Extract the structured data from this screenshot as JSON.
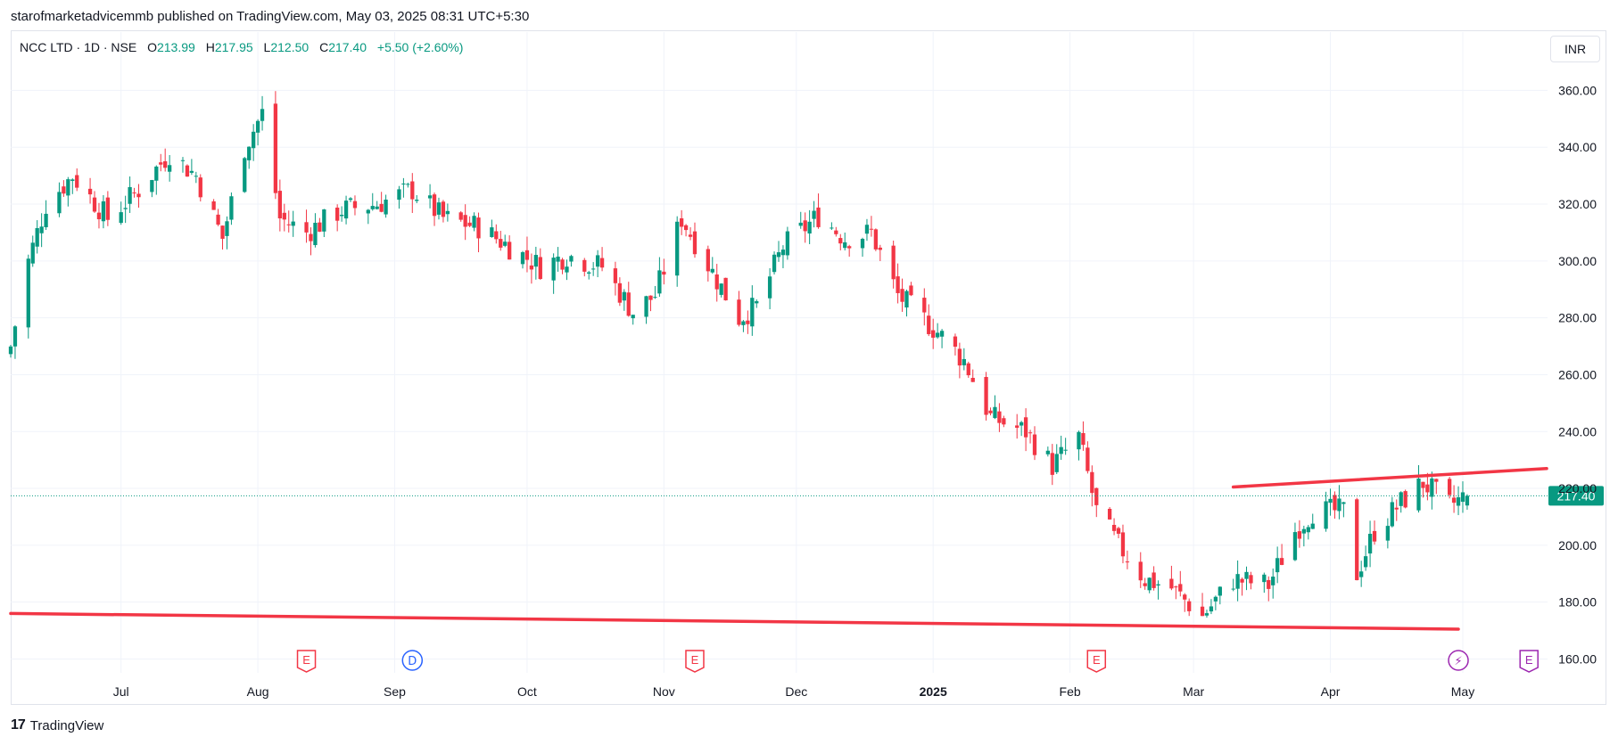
{
  "publisher_line": "starofmarketadvicemmb published on TradingView.com, May 03, 2025 08:31 UTC+5:30",
  "legend": {
    "symbol": "NCC LTD · 1D · NSE",
    "open_label": "O",
    "open": "213.99",
    "high_label": "H",
    "high": "217.95",
    "low_label": "L",
    "low": "212.50",
    "close_label": "C",
    "close": "217.40",
    "change": "+5.50 (+2.60%)"
  },
  "currency": "INR",
  "last_price_label": "217.40",
  "footer_brand": "TradingView",
  "colors": {
    "up": "#089981",
    "down": "#f23645",
    "trendline": "#f23645",
    "grid": "#f0f3fa",
    "earnings": "#f23645",
    "dividend": "#2962ff",
    "split": "#9c27b0"
  },
  "chart_data": {
    "type": "candlestick",
    "x_axis": {
      "type": "date",
      "ticks": [
        "Jul",
        "Aug",
        "Sep",
        "Oct",
        "Nov",
        "Dec",
        "2025",
        "Feb",
        "Mar",
        "Apr",
        "May"
      ]
    },
    "y_axis": {
      "ticks": [
        "360.00",
        "340.00",
        "320.00",
        "300.00",
        "280.00",
        "260.00",
        "240.00",
        "220.00",
        "200.00",
        "180.00",
        "160.00"
      ],
      "range": [
        152,
        378
      ]
    },
    "last_price": 217.4,
    "trendlines": [
      {
        "from": [
          "2024-06-06",
          176
        ],
        "to": [
          "2025-04-30",
          170.5
        ]
      },
      {
        "from": [
          "2025-03-10",
          220.5
        ],
        "to": [
          "2025-05-20",
          227
        ]
      }
    ],
    "events": [
      {
        "type": "earnings",
        "label": "E",
        "date": "2024-08-12"
      },
      {
        "type": "dividend",
        "label": "D",
        "date": "2024-09-05"
      },
      {
        "type": "earnings",
        "label": "E",
        "date": "2024-11-08"
      },
      {
        "type": "earnings",
        "label": "E",
        "date": "2025-02-07"
      },
      {
        "type": "split",
        "label": "⚡",
        "date": "2025-04-30"
      },
      {
        "type": "earnings",
        "label": "E",
        "date": "2025-05-16"
      }
    ],
    "ohlc_keyframes": [
      [
        "2024-06-06",
        270
      ],
      [
        "2024-06-10",
        300
      ],
      [
        "2024-06-14",
        320
      ],
      [
        "2024-06-20",
        330
      ],
      [
        "2024-06-28",
        315
      ],
      [
        "2024-07-05",
        325
      ],
      [
        "2024-07-12",
        338
      ],
      [
        "2024-07-18",
        330
      ],
      [
        "2024-07-24",
        308
      ],
      [
        "2024-07-29",
        340
      ],
      [
        "2024-08-02",
        352
      ],
      [
        "2024-08-06",
        315
      ],
      [
        "2024-08-12",
        310
      ],
      [
        "2024-08-20",
        318
      ],
      [
        "2024-08-28",
        320
      ],
      [
        "2024-09-05",
        325
      ],
      [
        "2024-09-12",
        315
      ],
      [
        "2024-09-20",
        312
      ],
      [
        "2024-09-27",
        305
      ],
      [
        "2024-10-04",
        298
      ],
      [
        "2024-10-10",
        302
      ],
      [
        "2024-10-18",
        298
      ],
      [
        "2024-10-25",
        282
      ],
      [
        "2024-10-30",
        288
      ],
      [
        "2024-11-05",
        315
      ],
      [
        "2024-11-12",
        296
      ],
      [
        "2024-11-18",
        280
      ],
      [
        "2024-11-22",
        284
      ],
      [
        "2024-11-28",
        305
      ],
      [
        "2024-12-06",
        316
      ],
      [
        "2024-12-12",
        308
      ],
      [
        "2024-12-18",
        310
      ],
      [
        "2024-12-24",
        288
      ],
      [
        "2025-01-02",
        275
      ],
      [
        "2025-01-08",
        265
      ],
      [
        "2025-01-14",
        245
      ],
      [
        "2025-01-22",
        240
      ],
      [
        "2025-01-28",
        228
      ],
      [
        "2025-02-03",
        238
      ],
      [
        "2025-02-07",
        212
      ],
      [
        "2025-02-12",
        200
      ],
      [
        "2025-02-18",
        188
      ],
      [
        "2025-02-24",
        185
      ],
      [
        "2025-03-03",
        175
      ],
      [
        "2025-03-10",
        188
      ],
      [
        "2025-03-18",
        186
      ],
      [
        "2025-03-24",
        205
      ],
      [
        "2025-03-28",
        212
      ],
      [
        "2025-04-04",
        212
      ],
      [
        "2025-04-07",
        190
      ],
      [
        "2025-04-11",
        205
      ],
      [
        "2025-04-17",
        215
      ],
      [
        "2025-04-22",
        222
      ],
      [
        "2025-04-28",
        214
      ],
      [
        "2025-05-02",
        217.4
      ]
    ]
  }
}
